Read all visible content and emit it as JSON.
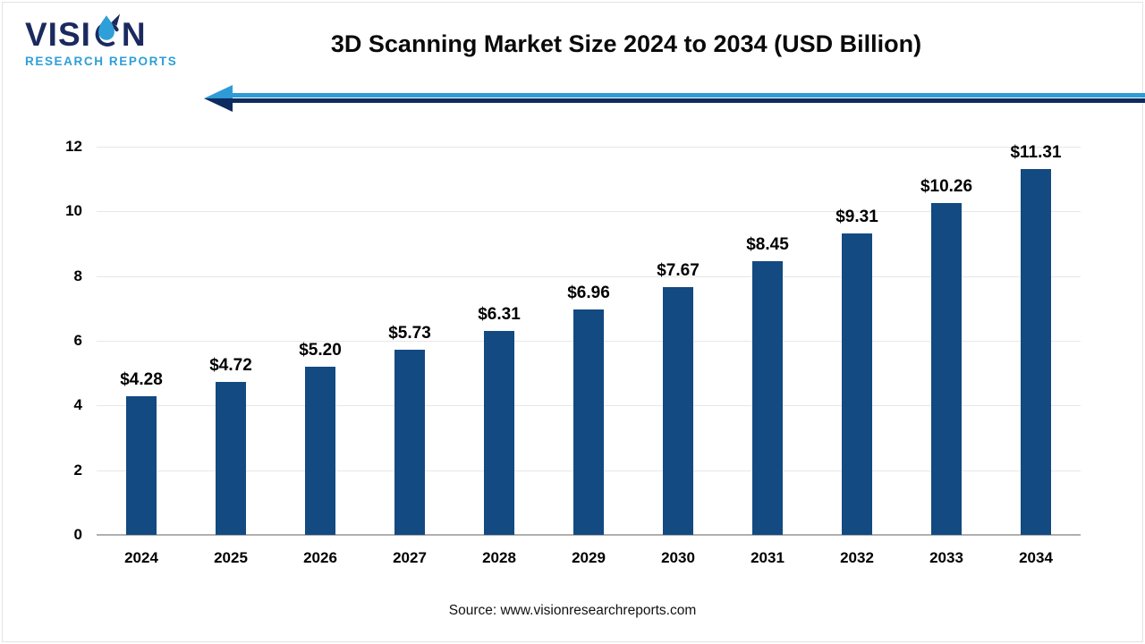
{
  "logo": {
    "brand_part1": "VISI",
    "brand_part2": "N",
    "brand_full": "VISION",
    "subtitle": "RESEARCH REPORTS"
  },
  "header": {
    "title": "3D Scanning Market Size 2024 to 2034 (USD Billion)"
  },
  "footer": {
    "source": "Source: www.visionresearchreports.com"
  },
  "colors": {
    "bar": "#124A81",
    "logo_navy": "#1B2A5E",
    "logo_blue": "#2E9FD8",
    "arrow_blue": "#2E9BD6",
    "arrow_navy": "#0E2B5F",
    "grid": "#E7E7E7",
    "axis": "#AFAFAF"
  },
  "chart_data": {
    "type": "bar",
    "title": "3D Scanning Market Size 2024 to 2034 (USD Billion)",
    "categories": [
      "2024",
      "2025",
      "2026",
      "2027",
      "2028",
      "2029",
      "2030",
      "2031",
      "2032",
      "2033",
      "2034"
    ],
    "values": [
      4.28,
      4.72,
      5.2,
      5.73,
      6.31,
      6.96,
      7.67,
      8.45,
      9.31,
      10.26,
      11.31
    ],
    "labels": [
      "$4.28",
      "$4.72",
      "$5.20",
      "$5.73",
      "$6.31",
      "$6.96",
      "$7.67",
      "$8.45",
      "$9.31",
      "$10.26",
      "$11.31"
    ],
    "xlabel": "",
    "ylabel": "",
    "ylim": [
      0,
      12
    ],
    "yticks": [
      0,
      2,
      4,
      6,
      8,
      10,
      12
    ],
    "grid": true,
    "legend": "none",
    "bar_color": "#124A81",
    "value_prefix": "$"
  }
}
